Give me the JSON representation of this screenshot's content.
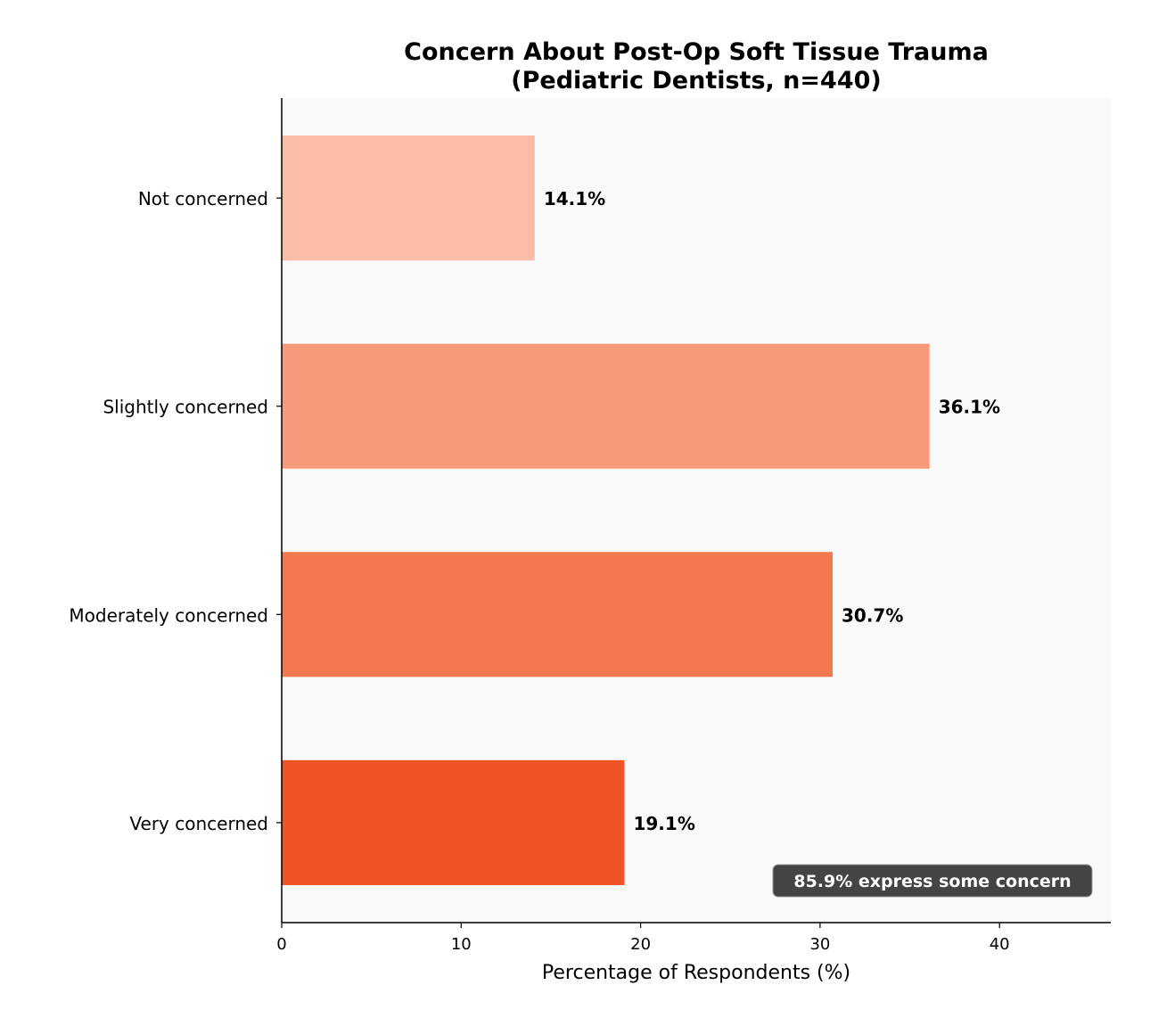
{
  "chart_data": {
    "type": "bar",
    "orientation": "horizontal",
    "title": "Concern About Post-Op Soft Tissue Trauma",
    "subtitle": "(Pediatric Dentists, n=440)",
    "xlabel": "Percentage of Respondents (%)",
    "ylabel": "",
    "categories": [
      "Not concerned",
      "Slightly concerned",
      "Moderately concerned",
      "Very concerned"
    ],
    "values": [
      14.1,
      36.1,
      30.7,
      19.1
    ],
    "data_labels": [
      "14.1%",
      "36.1%",
      "30.7%",
      "19.1%"
    ],
    "colors": [
      "#f9bca6",
      "#f79a7b",
      "#f37850",
      "#f05326"
    ],
    "xlim": [
      0,
      46.2
    ],
    "xticks": [
      0,
      10,
      20,
      30,
      40
    ],
    "xtick_labels": [
      "0",
      "10",
      "20",
      "30",
      "40"
    ],
    "grid": false,
    "plot_background": "#f9f9f9",
    "annotation": {
      "text": "85.9% express some concern",
      "placement": "bottom-right",
      "background": "#444444",
      "color": "#ffffff"
    }
  }
}
